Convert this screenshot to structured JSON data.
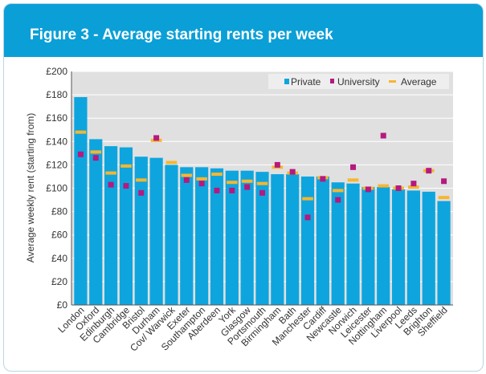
{
  "figure_title": "Figure 3 - Average starting rents per week",
  "chart_data": {
    "type": "bar",
    "ylabel": "Average weekly rent (starting from)",
    "ylim": [
      0,
      200
    ],
    "yticks": [
      "£0",
      "£20",
      "£40",
      "£60",
      "£80",
      "£100",
      "£120",
      "£140",
      "£160",
      "£180",
      "£200"
    ],
    "grid": true,
    "legend_position": "top-right",
    "legend": [
      {
        "key": "private",
        "label": "Private",
        "color": "#0ea5de",
        "symbol": "square"
      },
      {
        "key": "university",
        "label": "University",
        "color": "#b5197f",
        "symbol": "square"
      },
      {
        "key": "average",
        "label": "Average",
        "color": "#f7b62f",
        "symbol": "dash"
      }
    ],
    "categories": [
      "London",
      "Oxford",
      "Edinburgh",
      "Cambridge",
      "Bristol",
      "Durham",
      "Cov/ Warwick",
      "Exeter",
      "Southampton",
      "Aberdeen",
      "York",
      "Glasgow",
      "Portsmouth",
      "Birmingham",
      "Bath",
      "Manchester",
      "Cardiff",
      "Newcastle",
      "Norwich",
      "Leicester",
      "Nottingham",
      "Liverpool",
      "Leeds",
      "Brighton",
      "Sheffield"
    ],
    "series": [
      {
        "name": "Private",
        "type": "bar",
        "color": "#0ea5de",
        "values": [
          178,
          142,
          136,
          135,
          127,
          126,
          120,
          118,
          118,
          117,
          115,
          115,
          114,
          112,
          112,
          110,
          110,
          105,
          104,
          101,
          101,
          99,
          98,
          97,
          89
        ]
      },
      {
        "name": "University",
        "type": "marker",
        "color": "#b5197f",
        "values": [
          129,
          126,
          103,
          102,
          96,
          143,
          null,
          107,
          104,
          98,
          98,
          101,
          96,
          120,
          114,
          75,
          108,
          90,
          118,
          99,
          145,
          100,
          104,
          115,
          106
        ]
      },
      {
        "name": "Average",
        "type": "dash",
        "color": "#f7b62f",
        "values": [
          148,
          131,
          113,
          119,
          107,
          141,
          122,
          111,
          108,
          112,
          105,
          106,
          104,
          118,
          113,
          91,
          109,
          98,
          107,
          100,
          102,
          100,
          101,
          115,
          92
        ]
      }
    ]
  }
}
